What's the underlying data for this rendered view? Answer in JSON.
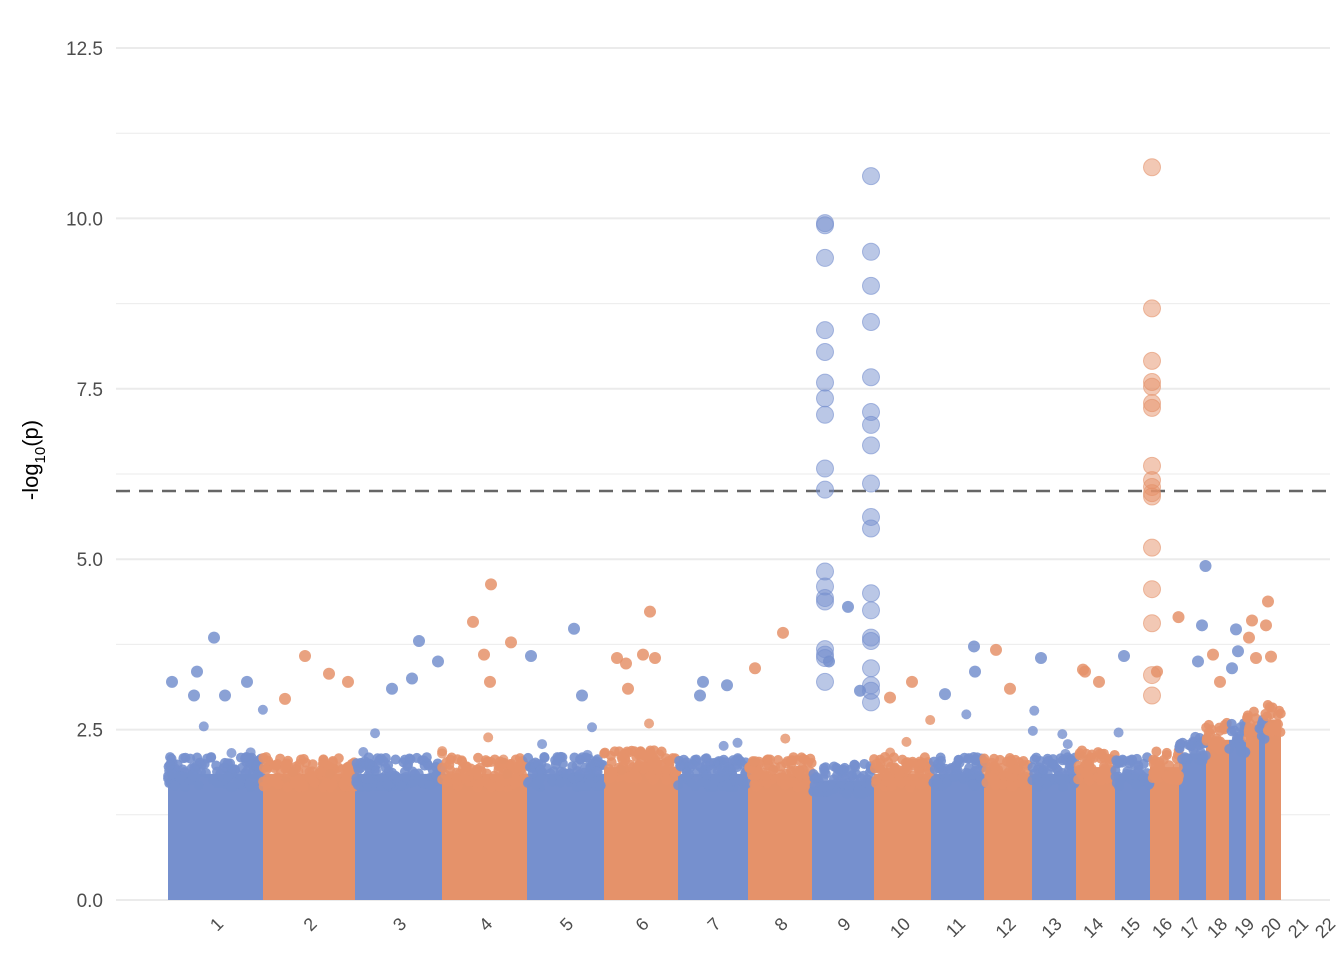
{
  "chart_data": {
    "type": "scatter",
    "subtype": "manhattan",
    "title": "",
    "xlabel": "",
    "ylabel": "-log10(p)",
    "ylabel_parts": {
      "pre": "-log",
      "sub": "10",
      "post": "(p)"
    },
    "ylim": [
      0,
      12.5
    ],
    "yticks": [
      0.0,
      2.5,
      5.0,
      7.5,
      10.0,
      12.5
    ],
    "ytick_labels": [
      "0.0",
      "2.5",
      "5.0",
      "7.5",
      "10.0",
      "12.5"
    ],
    "grid": true,
    "threshold": 6,
    "colors": {
      "odd": "#7690CE",
      "even": "#E5926A",
      "threshold": "#666666",
      "grid": "#ebebeb"
    },
    "chromosomes": [
      {
        "label": "1",
        "n_snps": 9500,
        "dense_top": 2.0
      },
      {
        "label": "2",
        "n_snps": 9200,
        "dense_top": 2.0
      },
      {
        "label": "3",
        "n_snps": 8700,
        "dense_top": 2.0
      },
      {
        "label": "4",
        "n_snps": 8500,
        "dense_top": 2.0
      },
      {
        "label": "5",
        "n_snps": 7700,
        "dense_top": 2.0
      },
      {
        "label": "6",
        "n_snps": 7400,
        "dense_top": 2.1
      },
      {
        "label": "7",
        "n_snps": 7000,
        "dense_top": 2.0
      },
      {
        "label": "8",
        "n_snps": 6400,
        "dense_top": 2.0
      },
      {
        "label": "9",
        "n_snps": 6200,
        "dense_top": 1.9
      },
      {
        "label": "10",
        "n_snps": 5700,
        "dense_top": 2.0
      },
      {
        "label": "11",
        "n_snps": 5300,
        "dense_top": 2.0
      },
      {
        "label": "12",
        "n_snps": 4800,
        "dense_top": 2.0
      },
      {
        "label": "13",
        "n_snps": 4400,
        "dense_top": 2.0
      },
      {
        "label": "14",
        "n_snps": 3900,
        "dense_top": 2.1
      },
      {
        "label": "15",
        "n_snps": 3500,
        "dense_top": 2.0
      },
      {
        "label": "16",
        "n_snps": 2900,
        "dense_top": 2.1
      },
      {
        "label": "17",
        "n_snps": 2700,
        "dense_top": 2.3
      },
      {
        "label": "18",
        "n_snps": 2300,
        "dense_top": 2.5
      },
      {
        "label": "19",
        "n_snps": 1700,
        "dense_top": 2.5
      },
      {
        "label": "20",
        "n_snps": 1300,
        "dense_top": 2.7
      },
      {
        "label": "21",
        "n_snps": 600,
        "dense_top": 2.6
      },
      {
        "label": "22",
        "n_snps": 1600,
        "dense_top": 2.8
      }
    ],
    "peak_loci": [
      {
        "chrom": "9",
        "offset": 1300,
        "values": [
          9.93,
          9.9,
          9.42,
          8.36,
          8.04,
          7.59,
          7.36,
          7.12,
          6.33,
          6.02,
          4.82,
          4.6,
          4.43,
          4.38,
          3.68,
          3.6,
          3.55,
          3.2
        ]
      },
      {
        "chrom": "9",
        "offset": 5900,
        "values": [
          10.62,
          9.51,
          9.01,
          8.48,
          7.67,
          7.16,
          6.97,
          6.67,
          6.11,
          5.62,
          5.45,
          4.5,
          4.25,
          3.85,
          3.8,
          3.4,
          3.15,
          3.07,
          2.9
        ]
      },
      {
        "chrom": "16",
        "offset": 200,
        "values": [
          10.75,
          8.68,
          7.91,
          7.6,
          7.53,
          7.29,
          7.22,
          6.37,
          6.16,
          6.06,
          5.97,
          5.92,
          5.17,
          4.56,
          4.06,
          3.3,
          3.0
        ]
      }
    ],
    "top_hits": [
      [
        "1",
        4600,
        3.85
      ],
      [
        "1",
        400,
        3.2
      ],
      [
        "1",
        2900,
        3.35
      ],
      [
        "1",
        7900,
        3.2
      ],
      [
        "1",
        2600,
        3.0
      ],
      [
        "1",
        5700,
        3.0
      ],
      [
        "2",
        4200,
        3.58
      ],
      [
        "2",
        6600,
        3.32
      ],
      [
        "2",
        8500,
        3.2
      ],
      [
        "2",
        2200,
        2.95
      ],
      [
        "3",
        6400,
        3.8
      ],
      [
        "3",
        8300,
        3.5
      ],
      [
        "3",
        5700,
        3.25
      ],
      [
        "3",
        3700,
        3.1
      ],
      [
        "4",
        4900,
        4.63
      ],
      [
        "4",
        3100,
        4.08
      ],
      [
        "4",
        4200,
        3.6
      ],
      [
        "4",
        6900,
        3.78
      ],
      [
        "4",
        4800,
        3.2
      ],
      [
        "5",
        400,
        3.58
      ],
      [
        "5",
        4700,
        3.98
      ],
      [
        "5",
        5500,
        3.0
      ],
      [
        "6",
        4600,
        4.23
      ],
      [
        "6",
        3900,
        3.6
      ],
      [
        "6",
        5100,
        3.55
      ],
      [
        "6",
        1300,
        3.55
      ],
      [
        "6",
        2200,
        3.47
      ],
      [
        "6",
        2400,
        3.1
      ],
      [
        "7",
        2500,
        3.2
      ],
      [
        "7",
        4900,
        3.15
      ],
      [
        "7",
        2200,
        3.0
      ],
      [
        "8",
        3500,
        3.92
      ],
      [
        "8",
        700,
        3.4
      ],
      [
        "9",
        1700,
        3.5
      ],
      [
        "9",
        3600,
        4.3
      ],
      [
        "9",
        4800,
        3.07
      ],
      [
        "10",
        3800,
        3.2
      ],
      [
        "10",
        1600,
        2.97
      ],
      [
        "11",
        4300,
        3.72
      ],
      [
        "11",
        4400,
        3.35
      ],
      [
        "11",
        1400,
        3.02
      ],
      [
        "12",
        1200,
        3.67
      ],
      [
        "12",
        2600,
        3.1
      ],
      [
        "13",
        900,
        3.55
      ],
      [
        "14",
        700,
        3.38
      ],
      [
        "14",
        900,
        3.35
      ],
      [
        "14",
        2300,
        3.2
      ],
      [
        "15",
        900,
        3.58
      ],
      [
        "16",
        2850,
        4.15
      ],
      [
        "16",
        700,
        3.35
      ],
      [
        "17",
        2650,
        4.9
      ],
      [
        "17",
        2300,
        4.03
      ],
      [
        "17",
        1900,
        3.5
      ],
      [
        "18",
        700,
        3.6
      ],
      [
        "18",
        1400,
        3.2
      ],
      [
        "19",
        700,
        3.97
      ],
      [
        "19",
        900,
        3.65
      ],
      [
        "19",
        300,
        3.4
      ],
      [
        "20",
        600,
        4.1
      ],
      [
        "20",
        300,
        3.85
      ],
      [
        "20",
        1000,
        3.55
      ],
      [
        "22",
        300,
        4.38
      ],
      [
        "22",
        100,
        4.03
      ],
      [
        "22",
        600,
        3.57
      ]
    ]
  }
}
